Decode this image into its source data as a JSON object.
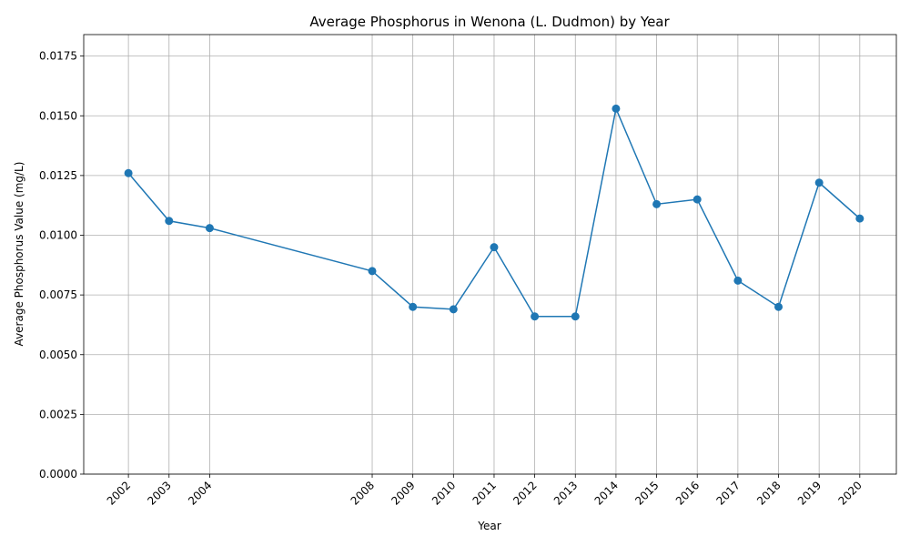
{
  "chart_data": {
    "type": "line",
    "title": "Average Phosphorus in Wenona (L. Dudmon) by Year",
    "xlabel": "Year",
    "ylabel": "Average Phosphorus Value (mg/L)",
    "ylim": [
      0,
      0.0184
    ],
    "xlim": [
      2000.9,
      2020.9
    ],
    "grid": true,
    "marker": "circle",
    "color": "#1f77b4",
    "x_ticks": [
      "2002",
      "2003",
      "2004",
      "2008",
      "2009",
      "2010",
      "2011",
      "2012",
      "2013",
      "2014",
      "2015",
      "2016",
      "2017",
      "2018",
      "2019",
      "2020"
    ],
    "y_ticks": [
      "0.0000",
      "0.0025",
      "0.0050",
      "0.0075",
      "0.0100",
      "0.0125",
      "0.0150",
      "0.0175"
    ],
    "y_tick_values": [
      0,
      0.0025,
      0.005,
      0.0075,
      0.01,
      0.0125,
      0.015,
      0.0175
    ],
    "series": [
      {
        "x": [
          2002,
          2003,
          2004,
          2008,
          2009,
          2010,
          2011,
          2012,
          2013,
          2014,
          2015,
          2016,
          2017,
          2018,
          2019,
          2020
        ],
        "y": [
          0.0126,
          0.0106,
          0.0103,
          0.0085,
          0.007,
          0.0069,
          0.0095,
          0.0066,
          0.0066,
          0.0153,
          0.0113,
          0.0115,
          0.0081,
          0.007,
          0.0122,
          0.0107
        ]
      }
    ]
  }
}
